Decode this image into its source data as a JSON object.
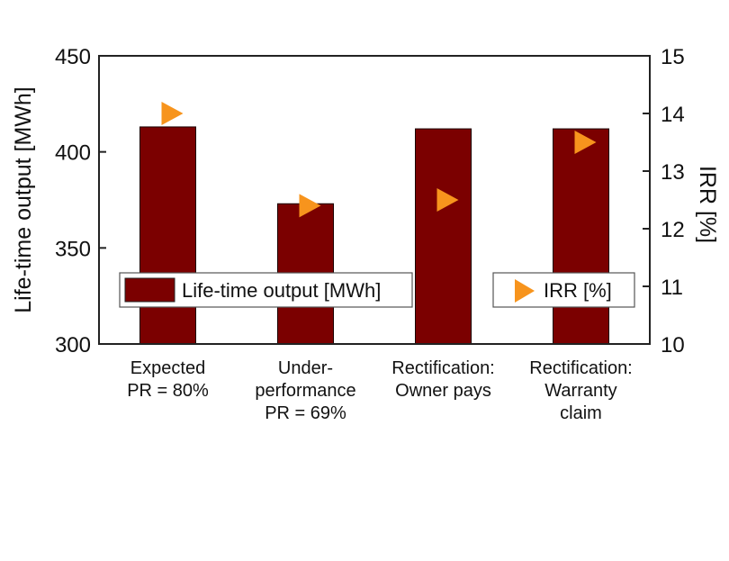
{
  "chart_data": {
    "type": "bar",
    "title": "",
    "categories": [
      [
        "Expected",
        "PR = 80%"
      ],
      [
        "Under-",
        "performance",
        "PR = 69%"
      ],
      [
        "Rectification:",
        "Owner pays"
      ],
      [
        "Rectification:",
        "Warranty",
        "claim"
      ]
    ],
    "series": [
      {
        "name": "Life-time output [MWh]",
        "type": "bar",
        "axis": "left",
        "color": "#7b0000",
        "values": [
          413,
          373,
          412,
          412
        ]
      },
      {
        "name": "IRR [%]",
        "type": "scatter",
        "marker": "triangle-right",
        "axis": "right",
        "color": "#f7941d",
        "values": [
          14.0,
          12.4,
          12.5,
          13.5
        ]
      }
    ],
    "ylabel": "Life-time output [MWh]",
    "y2label": "IRR [%]",
    "ylim": [
      300,
      450
    ],
    "y2lim": [
      10,
      15
    ],
    "yticks": [
      "300",
      "350",
      "400",
      "450"
    ],
    "y2ticks": [
      "10",
      "11",
      "12",
      "13",
      "14",
      "15"
    ],
    "grid": false,
    "legend_placement": "middle (two boxes: left and right)"
  }
}
